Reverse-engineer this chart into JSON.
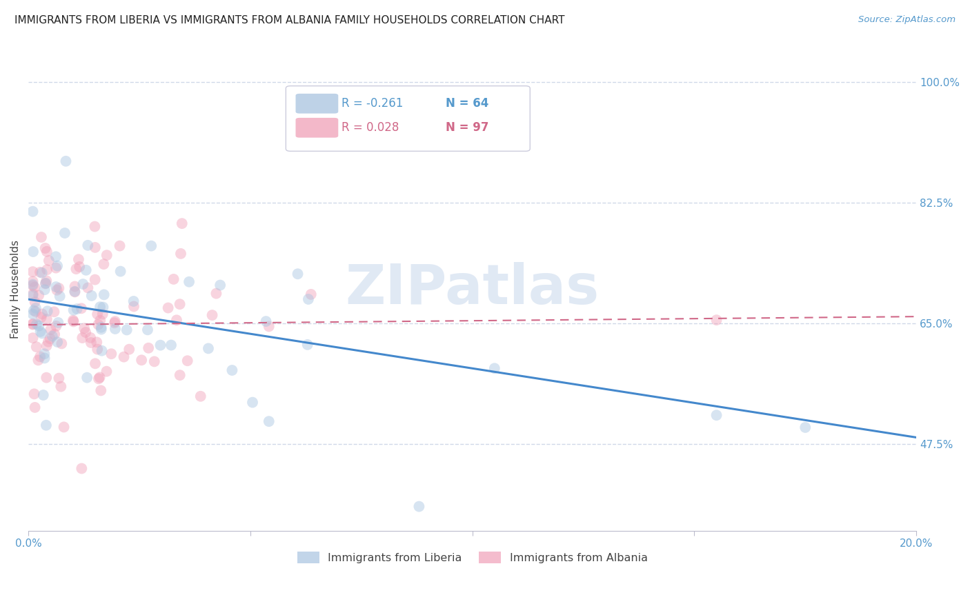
{
  "title": "IMMIGRANTS FROM LIBERIA VS IMMIGRANTS FROM ALBANIA FAMILY HOUSEHOLDS CORRELATION CHART",
  "source": "Source: ZipAtlas.com",
  "ylabel": "Family Households",
  "xlim": [
    0.0,
    0.2
  ],
  "ylim": [
    0.35,
    1.05
  ],
  "ytick_labels_right": [
    "100.0%",
    "82.5%",
    "65.0%",
    "47.5%"
  ],
  "ytick_vals_right": [
    1.0,
    0.825,
    0.65,
    0.475
  ],
  "grid_color": "#d0d8e8",
  "watermark": "ZIPatlas",
  "liberia_color": "#a8c4e0",
  "albania_color": "#f0a0b8",
  "liberia_line_color": "#4488cc",
  "albania_line_color": "#d06888",
  "legend_liberia_R": "-0.261",
  "legend_liberia_N": "64",
  "legend_albania_R": "0.028",
  "legend_albania_N": "97",
  "liberia_trend_x": [
    0.0,
    0.2
  ],
  "liberia_trend_y": [
    0.685,
    0.485
  ],
  "albania_trend_x": [
    0.0,
    0.2
  ],
  "albania_trend_y": [
    0.648,
    0.66
  ],
  "background_color": "#ffffff",
  "title_fontsize": 11,
  "axis_label_fontsize": 11,
  "tick_fontsize": 11,
  "scatter_size": 130,
  "scatter_alpha": 0.45
}
